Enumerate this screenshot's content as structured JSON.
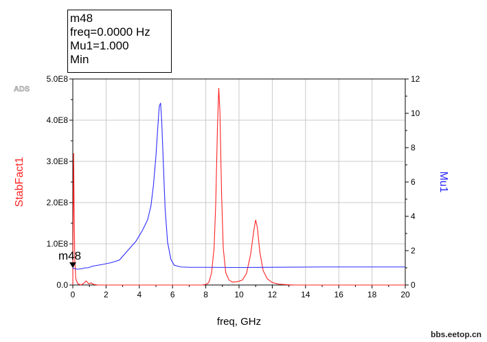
{
  "marker_readout": {
    "name": "m48",
    "freq": "freq=0.0000 Hz",
    "value": "Mu1=1.000",
    "mode": "Min"
  },
  "ads_logo": "ADS",
  "watermark": "bbs.eetop.cn",
  "chart_data": {
    "type": "line",
    "xlabel": "freq, GHz",
    "ylabel": "StabFact1",
    "y2label": "Mu1",
    "xlim": [
      0,
      20
    ],
    "ylim": [
      0,
      500000000
    ],
    "y2lim": [
      0,
      12
    ],
    "x_ticks": [
      "0",
      "2",
      "4",
      "6",
      "8",
      "10",
      "12",
      "14",
      "16",
      "18",
      "20"
    ],
    "y_ticks": [
      "0.0",
      "1.0E8",
      "2.0E8",
      "3.0E8",
      "4.0E8",
      "5.0E8"
    ],
    "y2_ticks": [
      "0",
      "2",
      "4",
      "6",
      "8",
      "10",
      "12"
    ],
    "grid": true,
    "colors": {
      "StabFact1": "#ff2020",
      "Mu1": "#2a2aff"
    },
    "marker": {
      "label": "m48",
      "x": 0,
      "y2": 1.0
    },
    "series": [
      {
        "name": "StabFact1",
        "axis": "left",
        "points": [
          [
            0.0,
            0
          ],
          [
            0.02,
            150000000
          ],
          [
            0.05,
            320000000
          ],
          [
            0.08,
            180000000
          ],
          [
            0.12,
            60000000
          ],
          [
            0.18,
            15000000
          ],
          [
            0.3,
            3000000
          ],
          [
            0.5,
            0
          ],
          [
            0.65,
            4000000
          ],
          [
            0.8,
            10000000
          ],
          [
            0.95,
            3000000
          ],
          [
            1.1,
            5000000
          ],
          [
            1.25,
            1500000
          ],
          [
            1.5,
            0
          ],
          [
            2.0,
            0
          ],
          [
            4.0,
            0
          ],
          [
            6.0,
            0
          ],
          [
            7.8,
            0
          ],
          [
            7.95,
            1000000
          ],
          [
            8.1,
            3000000
          ],
          [
            8.2,
            8000000
          ],
          [
            8.35,
            30000000
          ],
          [
            8.5,
            90000000
          ],
          [
            8.6,
            200000000
          ],
          [
            8.7,
            380000000
          ],
          [
            8.78,
            478000000
          ],
          [
            8.85,
            420000000
          ],
          [
            8.95,
            220000000
          ],
          [
            9.05,
            90000000
          ],
          [
            9.2,
            30000000
          ],
          [
            9.4,
            12000000
          ],
          [
            9.6,
            7000000
          ],
          [
            9.9,
            8000000
          ],
          [
            10.2,
            12000000
          ],
          [
            10.45,
            28000000
          ],
          [
            10.7,
            75000000
          ],
          [
            10.9,
            135000000
          ],
          [
            11.0,
            158000000
          ],
          [
            11.1,
            140000000
          ],
          [
            11.25,
            80000000
          ],
          [
            11.45,
            35000000
          ],
          [
            11.7,
            15000000
          ],
          [
            12.0,
            6000000
          ],
          [
            12.4,
            2000000
          ],
          [
            13.0,
            500000
          ],
          [
            13.3,
            0
          ],
          [
            20.0,
            0
          ]
        ]
      },
      {
        "name": "Mu1",
        "axis": "right",
        "points": [
          [
            0.0,
            1.0
          ],
          [
            0.1,
            0.95
          ],
          [
            0.3,
            0.92
          ],
          [
            0.55,
            0.95
          ],
          [
            0.75,
            1.0
          ],
          [
            0.9,
            1.0
          ],
          [
            1.2,
            1.1
          ],
          [
            1.8,
            1.2
          ],
          [
            2.3,
            1.3
          ],
          [
            2.8,
            1.45
          ],
          [
            3.3,
            2.0
          ],
          [
            3.8,
            2.55
          ],
          [
            4.2,
            3.2
          ],
          [
            4.5,
            3.8
          ],
          [
            4.7,
            4.6
          ],
          [
            4.85,
            5.8
          ],
          [
            5.0,
            7.5
          ],
          [
            5.1,
            9.0
          ],
          [
            5.2,
            10.4
          ],
          [
            5.28,
            10.6
          ],
          [
            5.35,
            9.5
          ],
          [
            5.45,
            7.0
          ],
          [
            5.55,
            4.5
          ],
          [
            5.7,
            2.5
          ],
          [
            5.9,
            1.5
          ],
          [
            6.1,
            1.15
          ],
          [
            6.5,
            1.05
          ],
          [
            7.0,
            1.03
          ],
          [
            8.0,
            1.03
          ],
          [
            10.0,
            1.02
          ],
          [
            15.0,
            1.05
          ],
          [
            20.0,
            1.05
          ]
        ]
      }
    ]
  }
}
